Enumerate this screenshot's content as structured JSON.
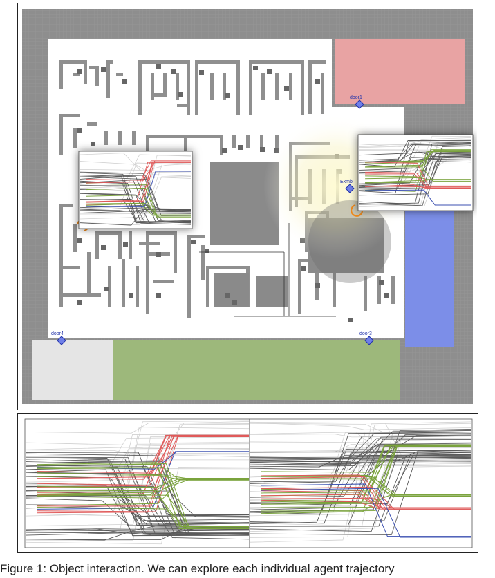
{
  "map": {
    "doors": [
      {
        "id": "door1",
        "label": "door1"
      },
      {
        "id": "door2",
        "label": "Exmb"
      },
      {
        "id": "door3",
        "label": "door3"
      },
      {
        "id": "door4",
        "label": "door4"
      }
    ],
    "zones": [
      {
        "name": "top-right-zone",
        "color": "#e8a0a0"
      },
      {
        "name": "right-zone",
        "color": "#7f8fe6"
      },
      {
        "name": "bottom-green-zone",
        "color": "#9cb57a"
      },
      {
        "name": "bottom-left-zone",
        "color": "#e4e4e4"
      }
    ],
    "colors": {
      "background": "#8a8a8a",
      "floor": "#ffffff",
      "wall": "#8c8c8c",
      "grid": "#9a9a9a"
    }
  },
  "plots": {
    "colors": {
      "red": "#e05a5a",
      "blue": "#3a4fb0",
      "green": "#7aa33c",
      "gray": "#555555",
      "lightgray": "#c8c8c8"
    }
  },
  "caption": {
    "text": "Figure 1: Object interaction. We can explore each individual agent trajectory"
  }
}
